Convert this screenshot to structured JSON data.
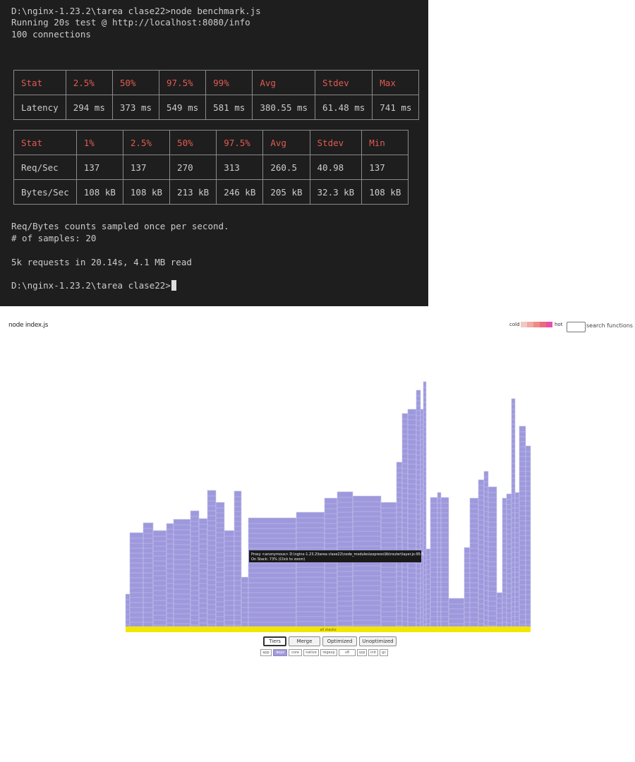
{
  "terminal": {
    "lines": [
      "D:\\nginx-1.23.2\\tarea clase22>node benchmark.js",
      "Running 20s test @ http://localhost:8080/info",
      "100 connections"
    ],
    "latency_table": {
      "header": [
        "Stat",
        "2.5%",
        "50%",
        "97.5%",
        "99%",
        "Avg",
        "Stdev",
        "Max"
      ],
      "rows": [
        [
          "Latency",
          "294 ms",
          "373 ms",
          "549 ms",
          "581 ms",
          "380.55 ms",
          "61.48 ms",
          "741 ms"
        ]
      ]
    },
    "throughput_table": {
      "header": [
        "Stat",
        "1%",
        "2.5%",
        "50%",
        "97.5%",
        "Avg",
        "Stdev",
        "Min"
      ],
      "rows": [
        [
          "Req/Sec",
          "137",
          "137",
          "270",
          "313",
          "260.5",
          "40.98",
          "137"
        ],
        [
          "Bytes/Sec",
          "108 kB",
          "108 kB",
          "213 kB",
          "246 kB",
          "205 kB",
          "32.3 kB",
          "108 kB"
        ]
      ]
    },
    "footer_lines": [
      "Req/Bytes counts sampled once per second.",
      "# of samples: 20",
      "",
      "5k requests in 20.14s, 4.1 MB read",
      "",
      "D:\\nginx-1.23.2\\tarea clase22>"
    ]
  },
  "flamegraph": {
    "title": "node index.js",
    "legend": {
      "cold_label": "cold",
      "hot_label": "hot",
      "colors": [
        "#f4c7c3",
        "#f0a9a4",
        "#ef8b86",
        "#ec6b78",
        "#e94fa8"
      ],
      "search_placeholder": "search functions"
    },
    "root_label": "all stacks",
    "tooltip": {
      "line1": "Proxy <anonymous> D:\\nginx-1.23.2\\tarea clase22\\node_modules\\express\\lib\\router\\layer.js:95:5",
      "line2": "On Stack: 73% (Click to zoom)"
    },
    "buttons": [
      {
        "label": "Tiers",
        "active": true
      },
      {
        "label": "Merge",
        "active": false
      },
      {
        "label": "Optimized",
        "active": false
      },
      {
        "label": "Unoptimized",
        "active": false
      }
    ],
    "chips": [
      "app",
      "deps",
      "core",
      "native",
      "regexp",
      "v8",
      "cpp",
      "init",
      "gc"
    ],
    "selected_chip": "deps",
    "colors": {
      "frame": "#9e99dc",
      "root": "#f3e600"
    }
  }
}
